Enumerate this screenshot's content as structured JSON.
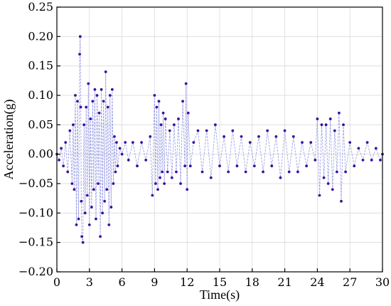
{
  "chart_data": {
    "type": "scatter",
    "xlabel": "Time(s)",
    "ylabel": "Acceleration(g)",
    "xlim": [
      0,
      30
    ],
    "ylim": [
      -0.2,
      0.25
    ],
    "x_ticks": [
      0,
      3,
      6,
      9,
      12,
      15,
      18,
      21,
      24,
      27,
      30
    ],
    "y_ticks": [
      -0.2,
      -0.15,
      -0.1,
      -0.05,
      0.0,
      0.05,
      0.1,
      0.15,
      0.2,
      0.25
    ],
    "x_tick_labels": [
      "0",
      "3",
      "6",
      "9",
      "12",
      "15",
      "18",
      "21",
      "24",
      "27",
      "30"
    ],
    "y_tick_labels": [
      "−0.20",
      "−0.15",
      "−0.10",
      "−0.05",
      "0.00",
      "0.05",
      "0.10",
      "0.15",
      "0.20",
      "0.25"
    ],
    "grid": true,
    "colors": {
      "points": "#3b0fa0",
      "line": "#8a8fe0"
    },
    "series": [
      {
        "x": [
          0.0,
          0.2,
          0.4,
          0.6,
          0.8,
          1.0,
          1.2,
          1.4,
          1.5,
          1.6,
          1.7,
          1.8,
          1.9,
          2.0,
          2.1,
          2.15,
          2.2,
          2.25,
          2.3,
          2.4,
          2.5,
          2.6,
          2.7,
          2.8,
          2.9,
          3.0,
          3.1,
          3.2,
          3.3,
          3.4,
          3.5,
          3.6,
          3.7,
          3.8,
          3.9,
          4.0,
          4.1,
          4.2,
          4.3,
          4.4,
          4.5,
          4.6,
          4.7,
          4.8,
          4.9,
          5.0,
          5.1,
          5.2,
          5.3,
          5.4,
          5.5,
          5.6,
          5.8,
          6.0,
          6.3,
          6.6,
          7.0,
          7.4,
          7.8,
          8.2,
          8.6,
          8.8,
          9.0,
          9.1,
          9.2,
          9.3,
          9.4,
          9.5,
          9.6,
          9.7,
          9.8,
          9.9,
          10.0,
          10.2,
          10.4,
          10.6,
          10.8,
          11.0,
          11.2,
          11.4,
          11.6,
          11.8,
          11.9,
          12.0,
          12.1,
          12.3,
          12.6,
          13.0,
          13.4,
          13.8,
          14.2,
          14.6,
          15.0,
          15.4,
          15.8,
          16.2,
          16.6,
          17.0,
          17.4,
          17.8,
          18.2,
          18.6,
          19.0,
          19.4,
          19.8,
          20.2,
          20.6,
          21.0,
          21.4,
          21.8,
          22.2,
          22.6,
          23.0,
          23.4,
          23.8,
          24.0,
          24.2,
          24.4,
          24.6,
          24.8,
          25.0,
          25.2,
          25.4,
          25.6,
          25.8,
          26.0,
          26.2,
          26.4,
          26.6,
          27.0,
          27.4,
          27.8,
          28.2,
          28.6,
          29.0,
          29.4,
          29.8,
          30.0
        ],
        "y": [
          0.0,
          -0.01,
          0.01,
          -0.02,
          0.02,
          -0.03,
          0.04,
          -0.05,
          0.05,
          -0.06,
          0.1,
          -0.12,
          0.09,
          -0.11,
          0.17,
          0.2,
          0.08,
          -0.08,
          -0.14,
          -0.15,
          0.05,
          -0.1,
          0.08,
          -0.07,
          0.12,
          -0.12,
          0.06,
          -0.09,
          0.09,
          -0.06,
          0.11,
          -0.11,
          0.1,
          -0.05,
          0.07,
          -0.14,
          0.11,
          -0.1,
          0.09,
          -0.08,
          0.14,
          -0.06,
          0.08,
          -0.12,
          0.1,
          -0.09,
          0.11,
          -0.05,
          0.03,
          -0.03,
          0.02,
          -0.02,
          0.01,
          0.0,
          0.02,
          -0.01,
          0.02,
          -0.02,
          0.02,
          -0.01,
          0.03,
          -0.07,
          0.1,
          -0.05,
          0.08,
          -0.06,
          0.09,
          -0.04,
          0.05,
          -0.03,
          0.07,
          -0.05,
          0.06,
          -0.03,
          0.04,
          -0.04,
          0.05,
          -0.03,
          0.06,
          -0.05,
          0.09,
          -0.02,
          0.12,
          -0.06,
          0.07,
          -0.02,
          0.02,
          0.04,
          -0.03,
          0.04,
          -0.04,
          0.05,
          -0.02,
          0.03,
          -0.03,
          0.04,
          -0.02,
          0.03,
          -0.03,
          0.02,
          -0.02,
          0.03,
          -0.03,
          0.04,
          -0.02,
          0.03,
          -0.04,
          0.04,
          -0.03,
          0.03,
          -0.03,
          0.02,
          -0.02,
          0.02,
          -0.01,
          0.06,
          -0.07,
          0.05,
          -0.04,
          0.05,
          -0.05,
          0.06,
          -0.06,
          0.04,
          -0.03,
          0.07,
          -0.08,
          0.05,
          -0.03,
          0.02,
          -0.02,
          0.01,
          -0.01,
          0.02,
          -0.01,
          0.01,
          -0.01,
          0.0
        ]
      }
    ]
  }
}
